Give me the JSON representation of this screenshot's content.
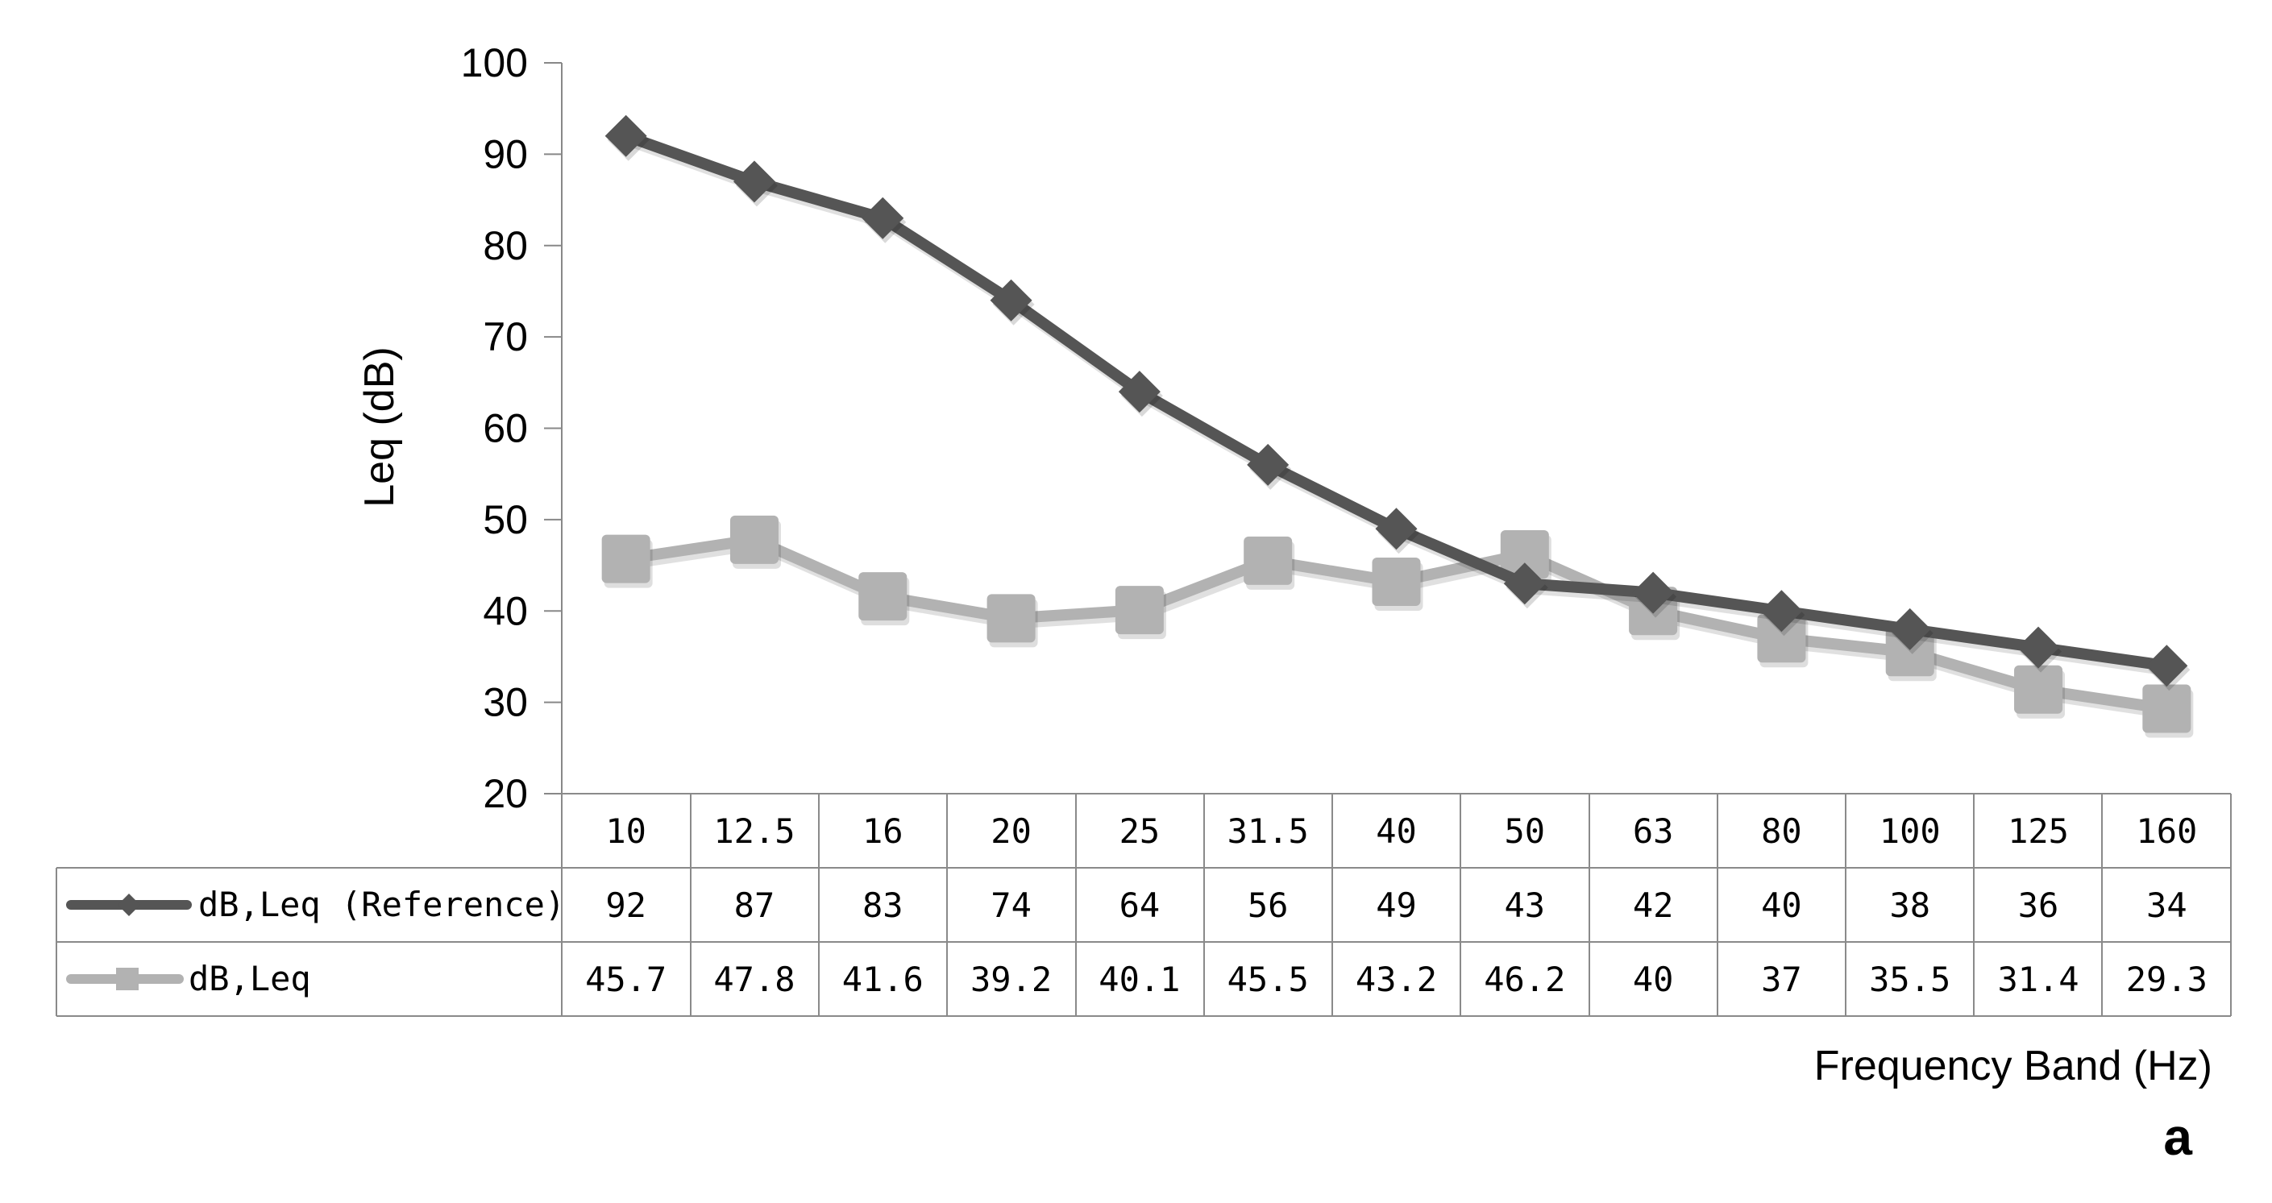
{
  "chart_data": {
    "type": "line",
    "x": [
      "10",
      "12.5",
      "16",
      "20",
      "25",
      "31.5",
      "40",
      "50",
      "63",
      "80",
      "100",
      "125",
      "160"
    ],
    "series": [
      {
        "name": "dB,Leq (Reference)",
        "values": [
          92,
          87,
          83,
          74,
          64,
          56,
          49,
          43,
          42,
          40,
          38,
          36,
          34
        ],
        "value_labels": [
          "92",
          "87",
          "83",
          "74",
          "64",
          "56",
          "49",
          "43",
          "42",
          "40",
          "38",
          "36",
          "34"
        ],
        "color": "#555555",
        "marker": "diamond"
      },
      {
        "name": "dB,Leq",
        "values": [
          45.7,
          47.8,
          41.6,
          39.2,
          40.1,
          45.5,
          43.2,
          46.2,
          40,
          37,
          35.5,
          31.4,
          29.3
        ],
        "value_labels": [
          "45.7",
          "47.8",
          "41.6",
          "39.2",
          "40.1",
          "45.5",
          "43.2",
          "46.2",
          "40",
          "37",
          "35.5",
          "31.4",
          "29.3"
        ],
        "color": "#b2b2b2",
        "marker": "square"
      }
    ],
    "y_ticks": [
      "100",
      "90",
      "80",
      "70",
      "60",
      "50",
      "40",
      "30",
      "20"
    ],
    "ylim": [
      20,
      100
    ],
    "ylabel": "Leq (dB)",
    "xlabel": "Frequency Band (Hz)",
    "panel_label": "a",
    "grid": false,
    "legend": "data-table"
  }
}
